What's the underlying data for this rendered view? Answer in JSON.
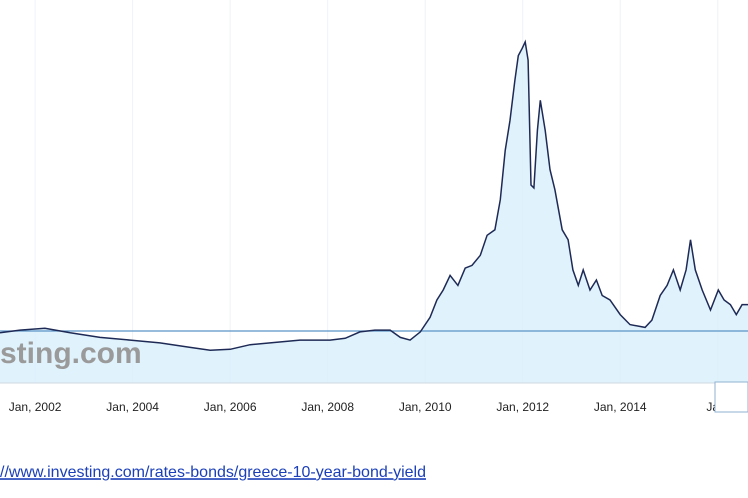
{
  "chart_data": {
    "type": "area",
    "watermark": "sting.com",
    "source_url": "//www.investing.com/rates-bonds/greece-10-year-bond-yield",
    "x": [
      2001.28,
      2001.69,
      2002.2,
      2002.72,
      2003.33,
      2003.95,
      2004.56,
      2005.18,
      2005.59,
      2006.0,
      2006.41,
      2006.82,
      2007.43,
      2008.05,
      2008.36,
      2008.66,
      2008.97,
      2009.28,
      2009.49,
      2009.69,
      2009.9,
      2010.1,
      2010.24,
      2010.37,
      2010.51,
      2010.67,
      2010.82,
      2010.96,
      2011.13,
      2011.27,
      2011.43,
      2011.54,
      2011.64,
      2011.74,
      2011.84,
      2011.91,
      2011.99,
      2012.05,
      2012.11,
      2012.17,
      2012.23,
      2012.3,
      2012.36,
      2012.46,
      2012.56,
      2012.66,
      2012.81,
      2012.93,
      2013.03,
      2013.14,
      2013.24,
      2013.38,
      2013.51,
      2013.63,
      2013.79,
      2014.0,
      2014.2,
      2014.51,
      2014.65,
      2014.82,
      2014.96,
      2015.09,
      2015.23,
      2015.35,
      2015.44,
      2015.54,
      2015.68,
      2015.85,
      2016.01,
      2016.13,
      2016.26,
      2016.38,
      2016.5,
      2016.62
    ],
    "values": [
      5.5,
      5.8,
      6.0,
      5.5,
      5.0,
      4.7,
      4.4,
      3.9,
      3.6,
      3.7,
      4.2,
      4.4,
      4.7,
      4.7,
      4.9,
      5.6,
      5.8,
      5.8,
      5.0,
      4.7,
      5.6,
      7.2,
      9.1,
      10.2,
      11.8,
      10.7,
      12.6,
      12.9,
      14.0,
      16.2,
      16.8,
      20.1,
      25.5,
      28.8,
      33.2,
      35.9,
      36.7,
      37.4,
      35.4,
      21.7,
      21.4,
      27.7,
      31.0,
      27.7,
      23.4,
      21.2,
      16.8,
      15.7,
      12.4,
      10.7,
      12.4,
      10.2,
      11.3,
      9.6,
      9.1,
      7.5,
      6.4,
      6.1,
      6.9,
      9.6,
      10.7,
      12.4,
      10.2,
      12.4,
      15.7,
      12.4,
      10.2,
      8.0,
      10.2,
      9.1,
      8.6,
      7.5,
      8.6,
      8.6
    ],
    "line_color": "#1e2a55",
    "fill_color": "#d8effb",
    "reference_value": 5.7,
    "reference_color": "#5b93c7",
    "xlim": [
      2001.28,
      2016.62
    ],
    "ylim": [
      0,
      42
    ],
    "xticks": [
      {
        "value": 2002,
        "label": "Jan, 2002"
      },
      {
        "value": 2004,
        "label": "Jan, 2004"
      },
      {
        "value": 2006,
        "label": "Jan, 2006"
      },
      {
        "value": 2008,
        "label": "Jan, 2008"
      },
      {
        "value": 2010,
        "label": "Jan, 2010"
      },
      {
        "value": 2012,
        "label": "Jan, 2012"
      },
      {
        "value": 2014,
        "label": "Jan, 2014"
      },
      {
        "value": 2016,
        "label": "Jan,"
      }
    ],
    "grid": true
  }
}
